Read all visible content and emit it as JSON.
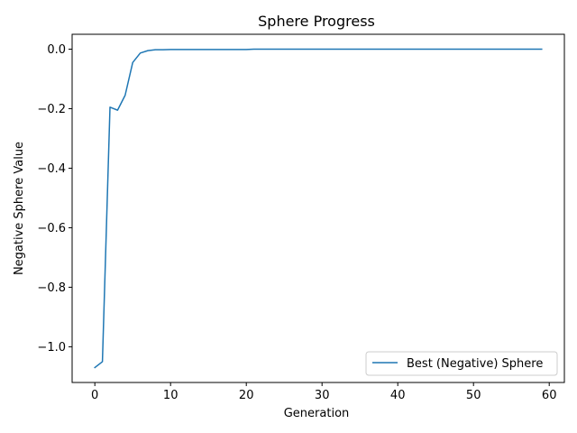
{
  "chart_data": {
    "type": "line",
    "title": "Sphere Progress",
    "xlabel": "Generation",
    "ylabel": "Negative Sphere Value",
    "xlim": [
      -3.0,
      62.0
    ],
    "ylim": [
      -1.12,
      0.05
    ],
    "xticks": [
      0,
      10,
      20,
      30,
      40,
      50,
      60
    ],
    "xtick_labels": [
      "0",
      "10",
      "20",
      "30",
      "40",
      "50",
      "60"
    ],
    "yticks": [
      0.0,
      -0.2,
      -0.4,
      -0.6,
      -0.8,
      -1.0
    ],
    "ytick_labels": [
      "0.0",
      "−0.2",
      "−0.4",
      "−0.6",
      "−0.8",
      "−1.0"
    ],
    "grid": false,
    "legend_position": "lower-right",
    "series": [
      {
        "name": "Best (Negative) Sphere",
        "color": "#1f77b4",
        "x": [
          0,
          1,
          2,
          3,
          4,
          5,
          6,
          7,
          8,
          9,
          10,
          11,
          12,
          13,
          14,
          15,
          16,
          17,
          18,
          19,
          20,
          21,
          22,
          23,
          24,
          25,
          26,
          27,
          28,
          29,
          30,
          31,
          32,
          33,
          34,
          35,
          36,
          37,
          38,
          39,
          40,
          41,
          42,
          43,
          44,
          45,
          46,
          47,
          48,
          49,
          50,
          51,
          52,
          53,
          54,
          55,
          56,
          57,
          58,
          59
        ],
        "values": [
          -1.07,
          -1.05,
          -0.195,
          -0.205,
          -0.155,
          -0.045,
          -0.013,
          -0.005,
          -0.002,
          -0.002,
          -0.001,
          -0.001,
          -0.001,
          -0.001,
          -0.001,
          -0.001,
          -0.001,
          -0.001,
          -0.001,
          -0.001,
          -0.001,
          0,
          0,
          0,
          0,
          0,
          0,
          0,
          0,
          0,
          0,
          0,
          0,
          0,
          0,
          0,
          0,
          0,
          0,
          0,
          0,
          0,
          0,
          0,
          0,
          0,
          0,
          0,
          0,
          0,
          0,
          0,
          0,
          0,
          0,
          0,
          0,
          0,
          0,
          0
        ]
      }
    ]
  }
}
